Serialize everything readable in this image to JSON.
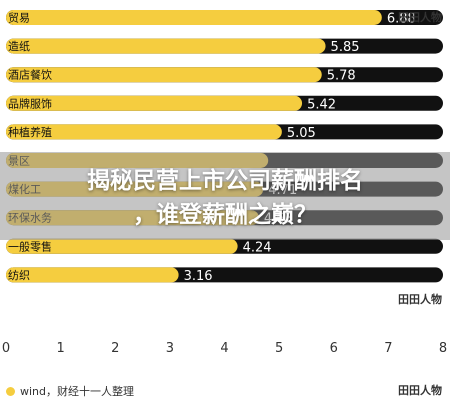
{
  "banner": {
    "line1": "揭秘民营上市公司薪酬排名",
    "line2": "，谁登薪酬之巅？"
  },
  "watermark": "田田人物",
  "legend": {
    "label": "wind，财经十一人整理"
  },
  "colors": {
    "bar": "#f5cd3f",
    "track": "#111111",
    "value_text": "#ffffff"
  },
  "chart_data": {
    "type": "bar",
    "orientation": "horizontal",
    "categories": [
      "贸易",
      "造纸",
      "酒店餐饮",
      "品牌服饰",
      "种植养殖",
      "景区",
      "煤化工",
      "环保水务",
      "一般零售",
      "纺织"
    ],
    "values": [
      6.88,
      5.85,
      5.78,
      5.42,
      5.05,
      4.8,
      4.71,
      4.63,
      4.24,
      3.16
    ],
    "value_labels": [
      "6.88",
      "5.85",
      "5.78",
      "5.42",
      "5.05",
      "",
      "4.71",
      "4.63",
      "4.24",
      "3.16"
    ],
    "xlim": [
      0,
      8
    ],
    "x_ticks": [
      "0",
      "1",
      "2",
      "3",
      "4",
      "5",
      "6",
      "7",
      "8"
    ],
    "title": "",
    "xlabel": "",
    "ylabel": ""
  }
}
